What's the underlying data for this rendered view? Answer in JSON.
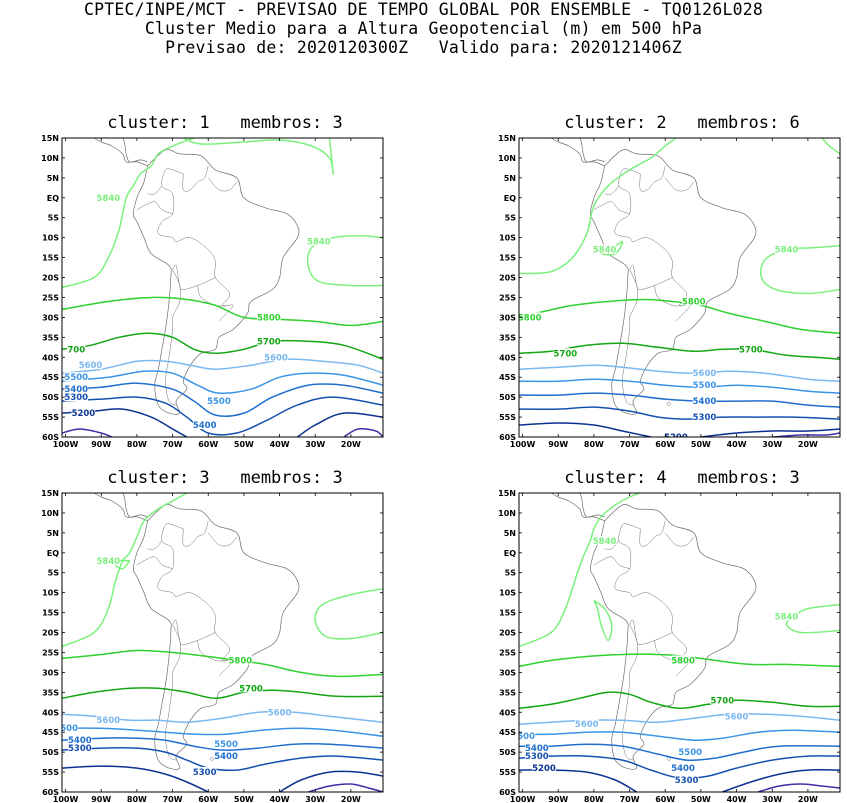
{
  "header": {
    "line1": "CPTEC/INPE/MCT - PREVISAO DE TEMPO GLOBAL POR ENSEMBLE - TQ0126L028",
    "line2": "Cluster Medio para a Altura Geopotencial (m) em 500 hPa",
    "line3": "Previsao de: 2020120300Z   Valido para: 2020121406Z"
  },
  "axes": {
    "lat_labels": [
      "15N",
      "10N",
      "5N",
      "EQ",
      "5S",
      "10S",
      "15S",
      "20S",
      "25S",
      "30S",
      "35S",
      "40S",
      "45S",
      "50S",
      "55S",
      "60S"
    ],
    "lon_labels": [
      "100W",
      "90W",
      "80W",
      "70W",
      "60W",
      "50W",
      "40W",
      "30W",
      "20W"
    ]
  },
  "colors": {
    "c5840": "#7cf07c",
    "c5800": "#2ed12e",
    "c5700": "#12a612",
    "c5600": "#7ab8f0",
    "c5500": "#3a94e6",
    "c5400": "#1e6ed0",
    "c5300": "#1450b0",
    "c5200": "#0a3290",
    "c5100": "#4a2aa8",
    "coast": "#6e6e6e"
  },
  "panels": [
    {
      "title": "cluster: 1   membros: 3",
      "labels": [
        {
          "text": "5840",
          "level": "c5840",
          "lon": -88,
          "lat": 0
        },
        {
          "text": "5840",
          "level": "c5840",
          "lon": -29,
          "lat": -11
        },
        {
          "text": "5800",
          "level": "c5800",
          "lon": -43,
          "lat": -30
        },
        {
          "text": "5700",
          "level": "c5700",
          "lon": -43,
          "lat": -36
        },
        {
          "text": "700",
          "level": "c5700",
          "lon": -97,
          "lat": -38
        },
        {
          "text": "5600",
          "level": "c5600",
          "lon": -41,
          "lat": -40
        },
        {
          "text": "5600",
          "level": "c5600",
          "lon": -93,
          "lat": -42
        },
        {
          "text": "5500",
          "level": "c5500",
          "lon": -97,
          "lat": -45
        },
        {
          "text": "5400",
          "level": "c5400",
          "lon": -97,
          "lat": -48
        },
        {
          "text": "5300",
          "level": "c5300",
          "lon": -97,
          "lat": -50
        },
        {
          "text": "5200",
          "level": "c5200",
          "lon": -95,
          "lat": -54
        },
        {
          "text": "5500",
          "level": "c5500",
          "lon": -57,
          "lat": -51
        },
        {
          "text": "5400",
          "level": "c5400",
          "lon": -61,
          "lat": -57
        }
      ]
    },
    {
      "title": "cluster: 2   membros: 6",
      "labels": [
        {
          "text": "5840",
          "level": "c5840",
          "lon": -77,
          "lat": -13
        },
        {
          "text": "5840",
          "level": "c5840",
          "lon": -26,
          "lat": -13
        },
        {
          "text": "5800",
          "level": "c5800",
          "lon": -52,
          "lat": -26
        },
        {
          "text": "5800",
          "level": "c5800",
          "lon": -98,
          "lat": -30
        },
        {
          "text": "5700",
          "level": "c5700",
          "lon": -88,
          "lat": -39
        },
        {
          "text": "5700",
          "level": "c5700",
          "lon": -36,
          "lat": -38
        },
        {
          "text": "5600",
          "level": "c5600",
          "lon": -49,
          "lat": -44
        },
        {
          "text": "5500",
          "level": "c5500",
          "lon": -49,
          "lat": -47
        },
        {
          "text": "5400",
          "level": "c5400",
          "lon": -49,
          "lat": -51
        },
        {
          "text": "5300",
          "level": "c5300",
          "lon": -49,
          "lat": -55
        },
        {
          "text": "5200",
          "level": "c5200",
          "lon": -57,
          "lat": -60
        }
      ]
    },
    {
      "title": "cluster: 3   membros: 3",
      "labels": [
        {
          "text": "5840",
          "level": "c5840",
          "lon": -88,
          "lat": -2
        },
        {
          "text": "5800",
          "level": "c5800",
          "lon": -51,
          "lat": -27
        },
        {
          "text": "5700",
          "level": "c5700",
          "lon": -48,
          "lat": -34
        },
        {
          "text": "5600",
          "level": "c5600",
          "lon": -40,
          "lat": -40
        },
        {
          "text": "5600",
          "level": "c5600",
          "lon": -88,
          "lat": -42
        },
        {
          "text": "500",
          "level": "c5500",
          "lon": -99,
          "lat": -44
        },
        {
          "text": "5400",
          "level": "c5400",
          "lon": -96,
          "lat": -47
        },
        {
          "text": "5300",
          "level": "c5300",
          "lon": -96,
          "lat": -49
        },
        {
          "text": "5500",
          "level": "c5500",
          "lon": -55,
          "lat": -48
        },
        {
          "text": "5400",
          "level": "c5400",
          "lon": -55,
          "lat": -51
        },
        {
          "text": "5300",
          "level": "c5300",
          "lon": -61,
          "lat": -55
        }
      ]
    },
    {
      "title": "cluster: 4   membros: 3",
      "labels": [
        {
          "text": "5840",
          "level": "c5840",
          "lon": -77,
          "lat": 3
        },
        {
          "text": "5840",
          "level": "c5840",
          "lon": -26,
          "lat": -16
        },
        {
          "text": "5800",
          "level": "c5800",
          "lon": -55,
          "lat": -27
        },
        {
          "text": "5700",
          "level": "c5700",
          "lon": -44,
          "lat": -37
        },
        {
          "text": "5600",
          "level": "c5600",
          "lon": -40,
          "lat": -41
        },
        {
          "text": "5600",
          "level": "c5600",
          "lon": -82,
          "lat": -43
        },
        {
          "text": "500",
          "level": "c5500",
          "lon": -99,
          "lat": -46
        },
        {
          "text": "5400",
          "level": "c5400",
          "lon": -96,
          "lat": -49
        },
        {
          "text": "5300",
          "level": "c5300",
          "lon": -96,
          "lat": -51
        },
        {
          "text": "5200",
          "level": "c5200",
          "lon": -94,
          "lat": -54
        },
        {
          "text": "5500",
          "level": "c5500",
          "lon": -53,
          "lat": -50
        },
        {
          "text": "5400",
          "level": "c5400",
          "lon": -55,
          "lat": -54
        },
        {
          "text": "5300",
          "level": "c5300",
          "lon": -54,
          "lat": -57
        }
      ]
    }
  ]
}
